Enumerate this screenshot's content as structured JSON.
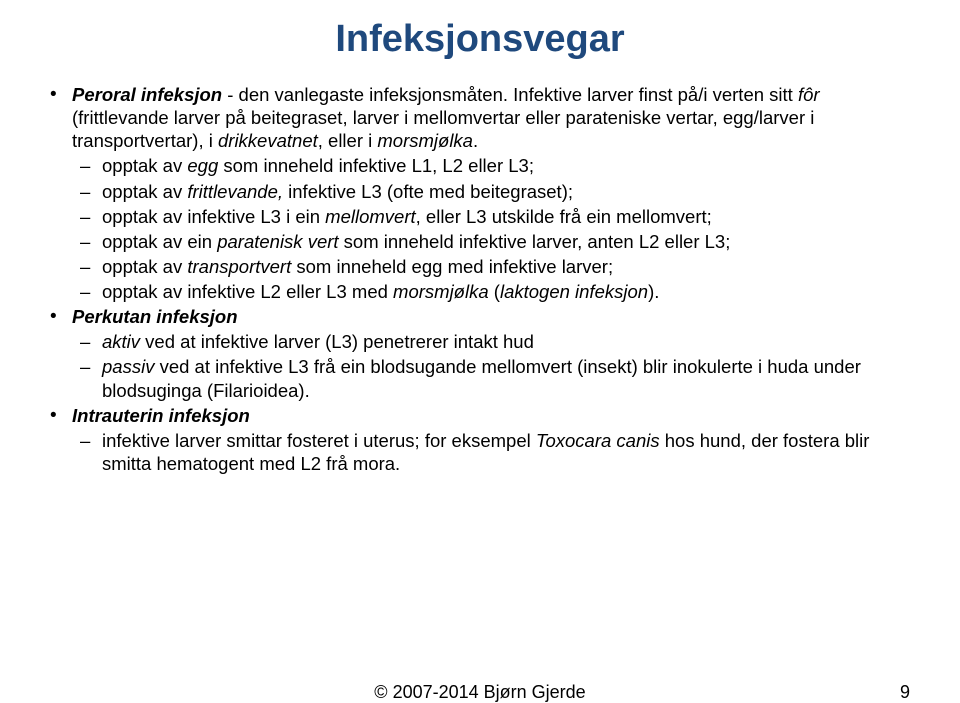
{
  "title": "Infeksjonsvegar",
  "title_color": "#1f497d",
  "body_color": "#000000",
  "background_color": "#ffffff",
  "title_fontsize": 38,
  "body_fontsize": 18.5,
  "footer_fontsize": 18,
  "b1_lead": "Peroral infeksjon",
  "b1_rest_a": " - den vanlegaste infeksjonsmåten. Infektive larver finst på/i verten sitt ",
  "b1_it_b": "fôr",
  "b1_rest_c": " (frittlevande larver på beitegraset, larver i mellomvertar eller parateniske vertar, egg/larver i transportvertar), i ",
  "b1_it_d": "drikkevatnet",
  "b1_rest_e": ", eller i ",
  "b1_it_f": "morsmjølka",
  "b1_rest_g": ".",
  "b1s1_a": "opptak av ",
  "b1s1_it": "egg",
  "b1s1_b": " som inneheld infektive L1, L2 eller L3;",
  "b1s2_a": "opptak av ",
  "b1s2_it": "frittlevande,",
  "b1s2_b": " infektive L3 (ofte med beitegraset);",
  "b1s3_a": "opptak av infektive L3 i ein ",
  "b1s3_it": "mellomvert",
  "b1s3_b": ", eller L3 utskilde frå ein mellomvert;",
  "b1s4_a": "opptak av ein ",
  "b1s4_it": "paratenisk vert",
  "b1s4_b": " som inneheld infektive larver, anten L2  eller L3;",
  "b1s5_a": "opptak av ",
  "b1s5_it": "transportvert",
  "b1s5_b": " som inneheld egg med infektive larver;",
  "b1s6_a": "opptak av infektive L2 eller L3 med ",
  "b1s6_it1": "morsmjølka",
  "b1s6_mid": " (",
  "b1s6_it2": "laktogen infeksjon",
  "b1s6_end": ").",
  "b2_lead": "Perkutan infeksjon",
  "b2s1_it": "aktiv",
  "b2s1_b": " ved at infektive larver (L3) penetrerer intakt hud",
  "b2s2_it": "passiv",
  "b2s2_b": " ved at infektive L3 frå ein blodsugande mellomvert (insekt) blir inokulerte i huda under blodsuginga (Filarioidea).",
  "b3_lead": "Intrauterin infeksjon",
  "b3s1_a": "infektive larver smittar fosteret i uterus; for eksempel ",
  "b3s1_it": "Toxocara canis",
  "b3s1_b": " hos hund, der fostera blir smitta hematogent med L2 frå mora.",
  "copyright": "© 2007-2014 Bjørn Gjerde",
  "pagenum": "9"
}
